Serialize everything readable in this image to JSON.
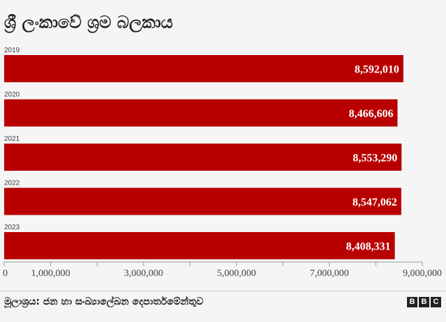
{
  "chart_data": {
    "type": "bar",
    "orientation": "horizontal",
    "title": "ශ්‍රී ලංකාවේ ශ්‍රම බලකාය",
    "categories": [
      "2019",
      "2020",
      "2021",
      "2022",
      "2023"
    ],
    "values": [
      8592010,
      8466606,
      8553290,
      8547062,
      8408331
    ],
    "value_labels": [
      "8,592,010",
      "8,466,606",
      "8,553,290",
      "8,547,062",
      "8,408,331"
    ],
    "xlim": [
      0,
      9000000
    ],
    "ticks": [
      {
        "value": 0,
        "label": "0"
      },
      {
        "value": 1000000,
        "label": "1,000,000"
      },
      {
        "value": 2000000,
        "label": ""
      },
      {
        "value": 3000000,
        "label": "3,000,000"
      },
      {
        "value": 4000000,
        "label": ""
      },
      {
        "value": 5000000,
        "label": "5,000,000"
      },
      {
        "value": 6000000,
        "label": ""
      },
      {
        "value": 7000000,
        "label": "7,000,000"
      },
      {
        "value": 8000000,
        "label": ""
      },
      {
        "value": 9000000,
        "label": "9,000,000"
      }
    ],
    "bar_color": "#b80000",
    "grid": false,
    "legend": "none"
  },
  "source": "මූලාශ්‍රය: ජන හා සංඛ්‍යාලේඛන දෙපාර්තමේන්තුව",
  "logo": [
    "B",
    "B",
    "C"
  ]
}
